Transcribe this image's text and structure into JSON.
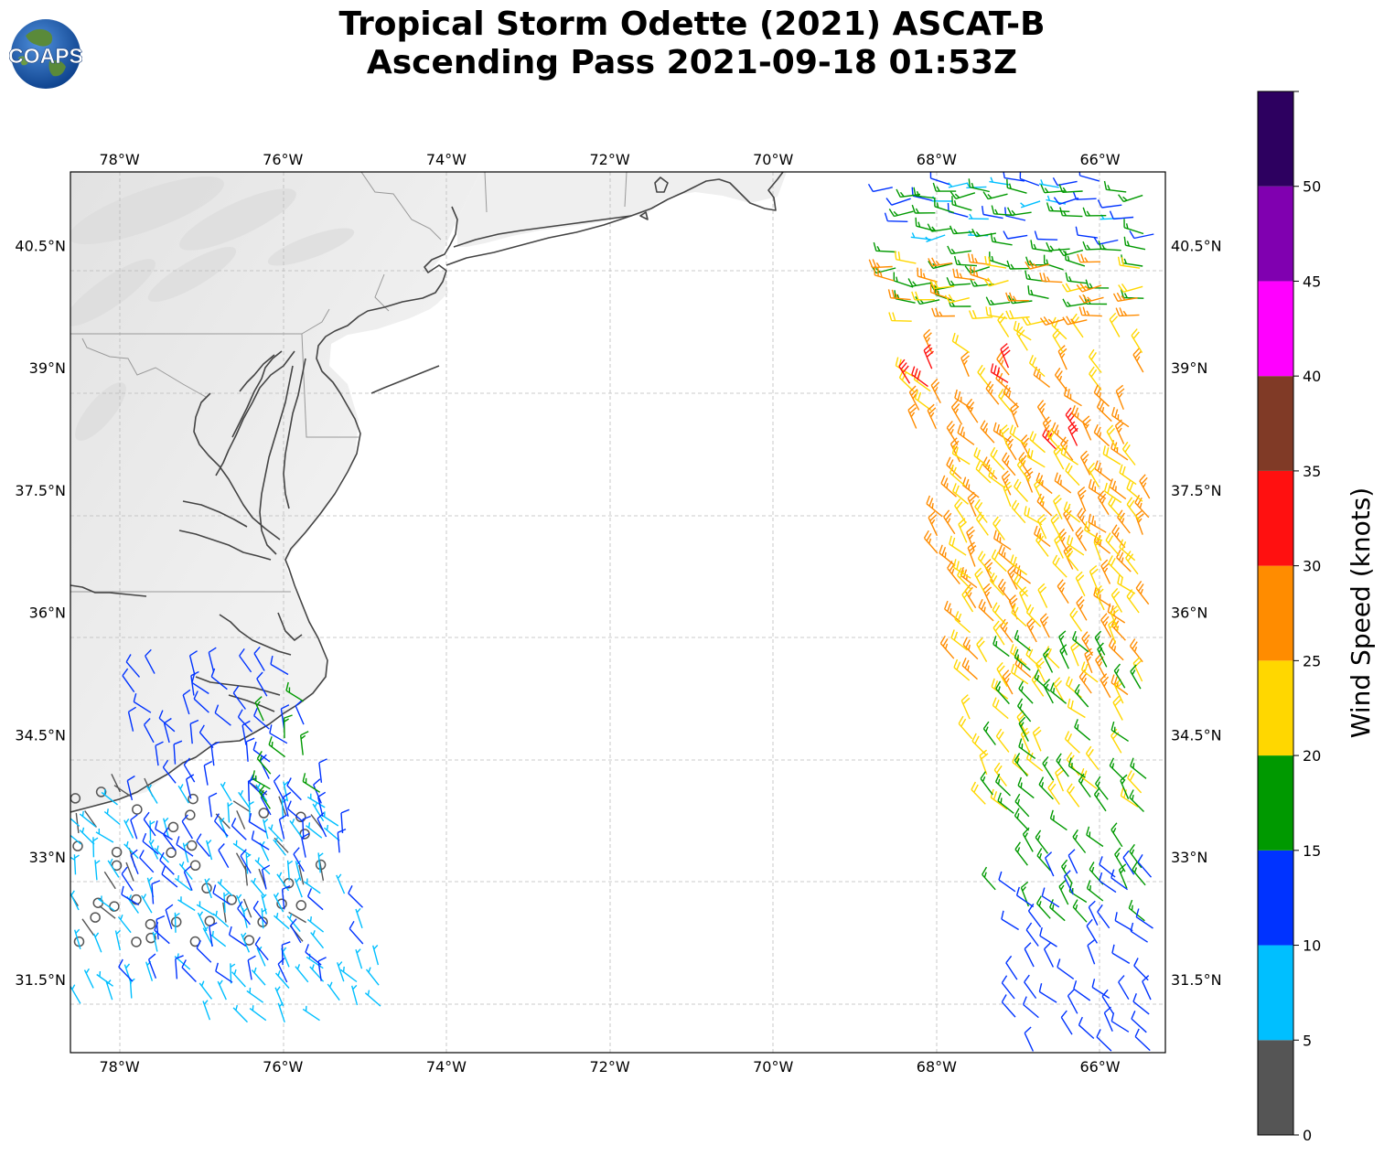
{
  "title": {
    "line1": "Tropical Storm Odette (2021) ASCAT-B",
    "line2": "Ascending Pass 2021-09-18 01:53Z"
  },
  "logo": {
    "text": "COAPS"
  },
  "map": {
    "lon_range": [
      -78.6,
      -65.2
    ],
    "lat_range": [
      30.6,
      41.4
    ],
    "lon_ticks": [
      {
        "value": -78,
        "label": "78°W"
      },
      {
        "value": -76,
        "label": "76°W"
      },
      {
        "value": -74,
        "label": "74°W"
      },
      {
        "value": -72,
        "label": "72°W"
      },
      {
        "value": -70,
        "label": "70°W"
      },
      {
        "value": -68,
        "label": "68°W"
      },
      {
        "value": -66,
        "label": "66°W"
      }
    ],
    "lat_ticks": [
      {
        "value": 31.5,
        "label": "31.5°N"
      },
      {
        "value": 33,
        "label": "33°N"
      },
      {
        "value": 34.5,
        "label": "34.5°N"
      },
      {
        "value": 36,
        "label": "36°N"
      },
      {
        "value": 37.5,
        "label": "37.5°N"
      },
      {
        "value": 39,
        "label": "39°N"
      },
      {
        "value": 40.5,
        "label": "40.5°N"
      }
    ],
    "grid": true,
    "coastline_color": "#444444",
    "border_color": "#999999",
    "land_color": "#eeeeee"
  },
  "colorbar": {
    "label": "Wind Speed (knots)",
    "bins": [
      {
        "min": 0,
        "max": 5,
        "color": "#555555"
      },
      {
        "min": 5,
        "max": 10,
        "color": "#00bfff"
      },
      {
        "min": 10,
        "max": 15,
        "color": "#0033ff"
      },
      {
        "min": 15,
        "max": 20,
        "color": "#009900"
      },
      {
        "min": 20,
        "max": 25,
        "color": "#ffd700"
      },
      {
        "min": 25,
        "max": 30,
        "color": "#ff8c00"
      },
      {
        "min": 30,
        "max": 35,
        "color": "#ff1010"
      },
      {
        "min": 35,
        "max": 40,
        "color": "#803a26"
      },
      {
        "min": 40,
        "max": 45,
        "color": "#ff00ff"
      },
      {
        "min": 45,
        "max": 50,
        "color": "#8000b0"
      },
      {
        "min": 50,
        "max": 55,
        "color": "#2d0060"
      }
    ],
    "tick_labels": [
      "0",
      "5",
      "10",
      "15",
      "20",
      "25",
      "30",
      "35",
      "40",
      "45",
      "50"
    ]
  },
  "chart_data": {
    "type": "wind-barbs",
    "units": "knots",
    "swaths": [
      {
        "name": "west",
        "regions": [
          {
            "lat": [
              32.0,
              33.8
            ],
            "lon": [
              -78.5,
              -75.5
            ],
            "speed_range": [
              0,
              5
            ]
          },
          {
            "lat": [
              31.0,
              33.8
            ],
            "lon": [
              -78.5,
              -74.6
            ],
            "speed_range": [
              5,
              10
            ]
          },
          {
            "lat": [
              31.5,
              35.3
            ],
            "lon": [
              -77.8,
              -75.0
            ],
            "speed_range": [
              10,
              15
            ]
          },
          {
            "lat": [
              33.6,
              35.0
            ],
            "lon": [
              -76.2,
              -75.4
            ],
            "speed_range": [
              15,
              20
            ]
          }
        ]
      },
      {
        "name": "east",
        "regions": [
          {
            "lat": [
              40.6,
              41.4
            ],
            "lon": [
              -69.0,
              -65.3
            ],
            "speed_range": [
              5,
              15
            ]
          },
          {
            "lat": [
              39.8,
              41.2
            ],
            "lon": [
              -68.7,
              -65.3
            ],
            "speed_range": [
              15,
              20
            ]
          },
          {
            "lat": [
              38.5,
              40.3
            ],
            "lon": [
              -68.5,
              -65.3
            ],
            "speed_range": [
              20,
              30
            ]
          },
          {
            "lat": [
              38.8,
              39.2
            ],
            "lon": [
              -68.3,
              -66.8
            ],
            "speed_range": [
              30,
              35
            ]
          },
          {
            "lat": [
              38.0,
              38.4
            ],
            "lon": [
              -67.2,
              -66.2
            ],
            "speed_range": [
              30,
              35
            ]
          },
          {
            "lat": [
              35.0,
              38.6
            ],
            "lon": [
              -68.2,
              -65.3
            ],
            "speed_range": [
              25,
              30
            ]
          },
          {
            "lat": [
              33.6,
              38.0
            ],
            "lon": [
              -67.6,
              -65.3
            ],
            "speed_range": [
              20,
              25
            ]
          },
          {
            "lat": [
              32.2,
              35.6
            ],
            "lon": [
              -67.3,
              -65.3
            ],
            "speed_range": [
              15,
              20
            ]
          },
          {
            "lat": [
              30.6,
              33.0
            ],
            "lon": [
              -67.0,
              -65.3
            ],
            "speed_range": [
              10,
              15
            ]
          }
        ]
      }
    ]
  }
}
